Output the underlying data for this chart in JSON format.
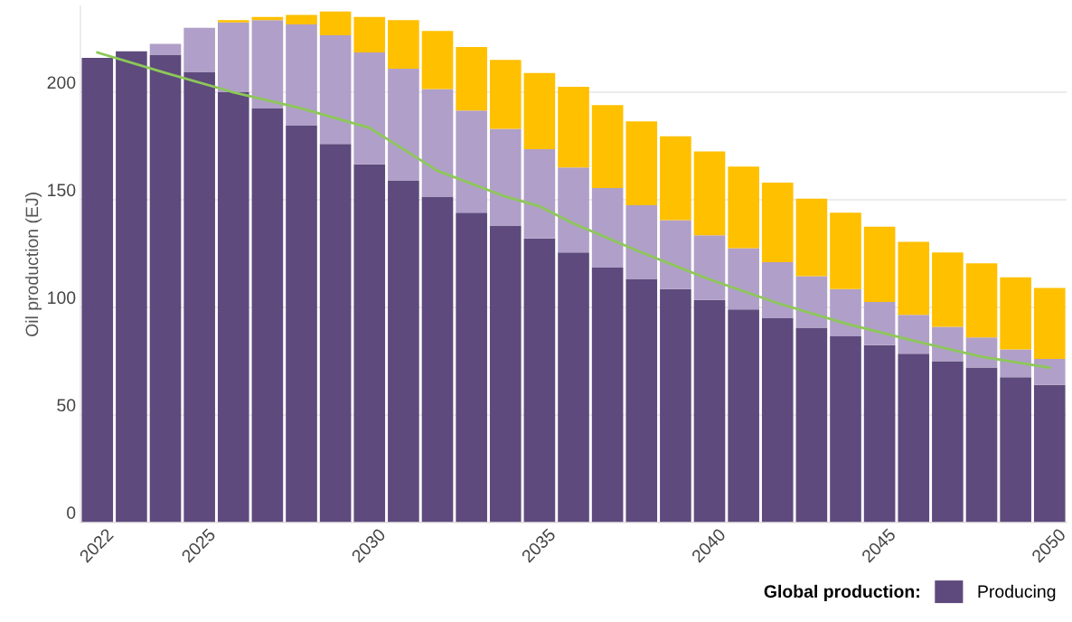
{
  "chart_data": {
    "type": "bar",
    "stacked": true,
    "ylabel": "Oil production (EJ)",
    "legend_title": "Global production:",
    "legend": "bottom right",
    "grid": "y",
    "x": [
      2022,
      2023,
      2024,
      2025,
      2026,
      2027,
      2028,
      2029,
      2030,
      2031,
      2032,
      2033,
      2034,
      2035,
      2036,
      2037,
      2038,
      2039,
      2040,
      2041,
      2042,
      2043,
      2044,
      2045,
      2046,
      2047,
      2048,
      2049,
      2050
    ],
    "xlim": [
      2021.5,
      2050.5
    ],
    "xticks": [
      2022,
      2025,
      2030,
      2035,
      2040,
      2045,
      2050
    ],
    "ylim": [
      0,
      240
    ],
    "yticks": [
      0,
      50,
      100,
      150,
      200
    ],
    "series": [
      {
        "name": "Producing",
        "color": "#5e4a7d",
        "values": [
          216,
          219,
          217.5,
          209.5,
          200,
          192.5,
          184.5,
          176,
          166.5,
          159,
          151.5,
          144,
          138,
          132,
          125.5,
          118.5,
          113,
          108.5,
          103.5,
          99,
          95,
          90.5,
          86.5,
          82.5,
          78.5,
          75,
          72,
          67.5,
          64
        ]
      },
      {
        "color": "#b09fc8",
        "values": [
          null,
          null,
          5,
          20.5,
          32.5,
          41,
          47,
          50.5,
          52,
          52,
          50,
          47.5,
          45,
          41.5,
          39.5,
          37,
          34.5,
          32,
          30,
          28.5,
          26,
          24,
          22,
          20,
          18,
          16,
          14,
          13,
          12
        ]
      },
      {
        "color": "#ffc000",
        "values": [
          null,
          null,
          null,
          null,
          1,
          1.5,
          4.5,
          11,
          16.5,
          22.5,
          27,
          29.5,
          32,
          35.5,
          37.5,
          38.5,
          39,
          39,
          39,
          38,
          37,
          36,
          35.5,
          35,
          34,
          34.5,
          34.5,
          33.5,
          33
        ]
      },
      {
        "type": "line",
        "color": "#8dc858",
        "x": [
          2022,
          2024,
          2026,
          2028,
          2030,
          2032,
          2034,
          2035,
          2036,
          2038,
          2040,
          2042,
          2044,
          2046,
          2048,
          2050
        ],
        "values": [
          218.5,
          209,
          200,
          192.5,
          183.5,
          163.5,
          151.5,
          147,
          139,
          125.5,
          113,
          102,
          92.5,
          84.5,
          77,
          72
        ]
      }
    ]
  }
}
